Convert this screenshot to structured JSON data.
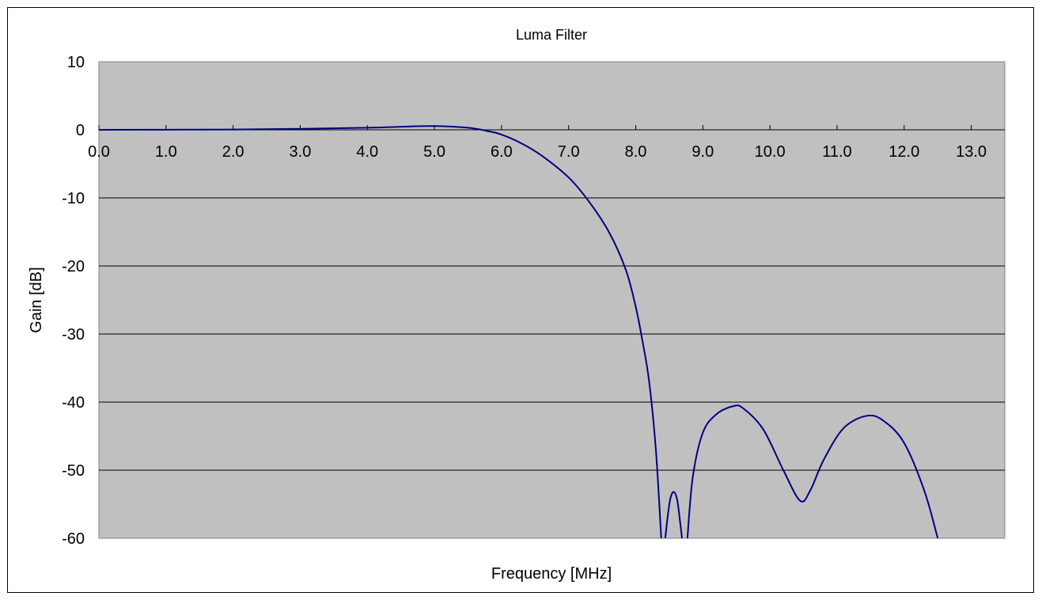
{
  "chart_data": {
    "type": "line",
    "title": "Luma Filter",
    "xlabel": "Frequency [MHz]",
    "ylabel": "Gain [dB]",
    "xlim": [
      0,
      13.5
    ],
    "ylim": [
      -60,
      10
    ],
    "x_ticks": [
      0,
      1,
      2,
      3,
      4,
      5,
      6,
      7,
      8,
      9,
      10,
      11,
      12,
      13
    ],
    "x_tick_labels": [
      "0.0",
      "1.0",
      "2.0",
      "3.0",
      "4.0",
      "5.0",
      "6.0",
      "7.0",
      "8.0",
      "9.0",
      "10.0",
      "11.0",
      "12.0",
      "13.0"
    ],
    "y_ticks": [
      10,
      0,
      -10,
      -20,
      -30,
      -40,
      -50,
      -60
    ],
    "y_tick_labels": [
      "10",
      "0",
      "-10",
      "-20",
      "-30",
      "-40",
      "-50",
      "-60"
    ],
    "grid": "horizontal",
    "legend": "none",
    "plot_background": "#c0c0c0",
    "series_color": "#000080",
    "series": [
      {
        "segments": [
          [
            [
              0.0,
              0.0
            ],
            [
              1.0,
              0.02
            ],
            [
              2.0,
              0.05
            ],
            [
              3.0,
              0.15
            ],
            [
              4.0,
              0.3
            ],
            [
              4.5,
              0.45
            ],
            [
              5.0,
              0.55
            ],
            [
              5.5,
              0.3
            ],
            [
              5.8,
              -0.2
            ],
            [
              6.0,
              -0.7
            ],
            [
              6.3,
              -2.0
            ],
            [
              6.6,
              -3.8
            ],
            [
              7.0,
              -7.0
            ],
            [
              7.3,
              -10.5
            ],
            [
              7.6,
              -15.0
            ],
            [
              7.85,
              -20.5
            ],
            [
              8.0,
              -26.0
            ],
            [
              8.1,
              -31.0
            ],
            [
              8.2,
              -37.0
            ],
            [
              8.3,
              -47.0
            ],
            [
              8.38,
              -60.0
            ]
          ],
          [
            [
              8.44,
              -60.0
            ],
            [
              8.48,
              -56.5
            ],
            [
              8.52,
              -54.0
            ],
            [
              8.57,
              -53.2
            ],
            [
              8.62,
              -54.5
            ],
            [
              8.66,
              -57.5
            ],
            [
              8.69,
              -60.0
            ]
          ],
          [
            [
              8.77,
              -60.0
            ],
            [
              8.85,
              -51.0
            ],
            [
              9.0,
              -44.5
            ],
            [
              9.2,
              -41.8
            ],
            [
              9.45,
              -40.6
            ],
            [
              9.6,
              -40.9
            ],
            [
              9.9,
              -44.0
            ],
            [
              10.2,
              -50.0
            ],
            [
              10.45,
              -54.5
            ],
            [
              10.6,
              -53.0
            ],
            [
              10.8,
              -48.5
            ],
            [
              11.1,
              -43.8
            ],
            [
              11.45,
              -42.0
            ],
            [
              11.7,
              -42.8
            ],
            [
              12.0,
              -46.0
            ],
            [
              12.3,
              -53.0
            ],
            [
              12.5,
              -60.0
            ]
          ]
        ]
      }
    ]
  }
}
